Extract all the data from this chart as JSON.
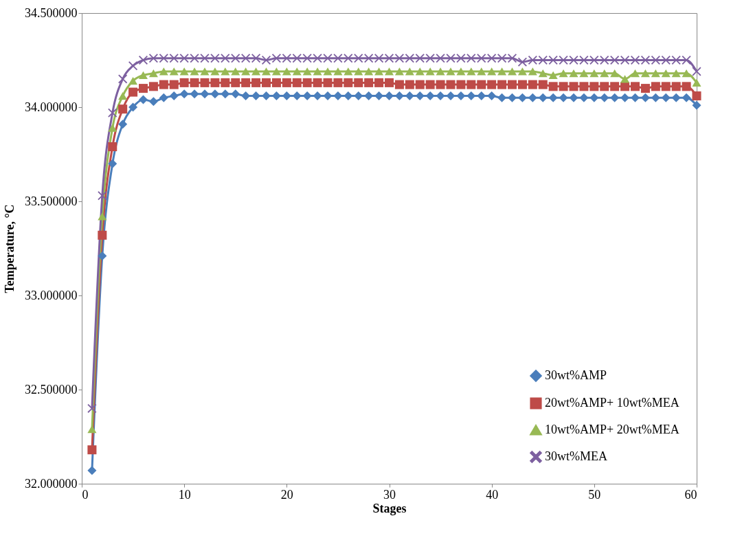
{
  "chart_data": {
    "type": "line",
    "xlabel": "Stages",
    "ylabel": "Temperature, °C",
    "x": [
      1,
      2,
      3,
      4,
      5,
      6,
      7,
      8,
      9,
      10,
      11,
      12,
      13,
      14,
      15,
      16,
      17,
      18,
      19,
      20,
      21,
      22,
      23,
      24,
      25,
      26,
      27,
      28,
      29,
      30,
      31,
      32,
      33,
      34,
      35,
      36,
      37,
      38,
      39,
      40,
      41,
      42,
      43,
      44,
      45,
      46,
      47,
      48,
      49,
      50,
      51,
      52,
      53,
      54,
      55,
      56,
      57,
      58,
      59,
      60
    ],
    "series": [
      {
        "name": "30wt%AMP",
        "color": "#4a7ebb",
        "marker": "diamond",
        "values": [
          32.07,
          33.21,
          33.7,
          33.91,
          34.0,
          34.04,
          34.03,
          34.05,
          34.06,
          34.07,
          34.07,
          34.07,
          34.07,
          34.07,
          34.07,
          34.06,
          34.06,
          34.06,
          34.06,
          34.06,
          34.06,
          34.06,
          34.06,
          34.06,
          34.06,
          34.06,
          34.06,
          34.06,
          34.06,
          34.06,
          34.06,
          34.06,
          34.06,
          34.06,
          34.06,
          34.06,
          34.06,
          34.06,
          34.06,
          34.06,
          34.05,
          34.05,
          34.05,
          34.05,
          34.05,
          34.05,
          34.05,
          34.05,
          34.05,
          34.05,
          34.05,
          34.05,
          34.05,
          34.05,
          34.05,
          34.05,
          34.05,
          34.05,
          34.05,
          34.01
        ]
      },
      {
        "name": "20wt%AMP+ 10wt%MEA",
        "color": "#be4b48",
        "marker": "square",
        "values": [
          32.18,
          33.32,
          33.79,
          33.99,
          34.08,
          34.1,
          34.11,
          34.12,
          34.12,
          34.13,
          34.13,
          34.13,
          34.13,
          34.13,
          34.13,
          34.13,
          34.13,
          34.13,
          34.13,
          34.13,
          34.13,
          34.13,
          34.13,
          34.13,
          34.13,
          34.13,
          34.13,
          34.13,
          34.13,
          34.13,
          34.12,
          34.12,
          34.12,
          34.12,
          34.12,
          34.12,
          34.12,
          34.12,
          34.12,
          34.12,
          34.12,
          34.12,
          34.12,
          34.12,
          34.12,
          34.11,
          34.11,
          34.11,
          34.11,
          34.11,
          34.11,
          34.11,
          34.11,
          34.11,
          34.1,
          34.11,
          34.11,
          34.11,
          34.11,
          34.06
        ]
      },
      {
        "name": "10wt%AMP+ 20wt%MEA",
        "color": "#98b954",
        "marker": "triangle",
        "values": [
          32.29,
          33.42,
          33.89,
          34.06,
          34.14,
          34.17,
          34.18,
          34.19,
          34.19,
          34.19,
          34.19,
          34.19,
          34.19,
          34.19,
          34.19,
          34.19,
          34.19,
          34.19,
          34.19,
          34.19,
          34.19,
          34.19,
          34.19,
          34.19,
          34.19,
          34.19,
          34.19,
          34.19,
          34.19,
          34.19,
          34.19,
          34.19,
          34.19,
          34.19,
          34.19,
          34.19,
          34.19,
          34.19,
          34.19,
          34.19,
          34.19,
          34.19,
          34.19,
          34.19,
          34.18,
          34.17,
          34.18,
          34.18,
          34.18,
          34.18,
          34.18,
          34.18,
          34.15,
          34.18,
          34.18,
          34.18,
          34.18,
          34.18,
          34.18,
          34.13
        ]
      },
      {
        "name": "30wt%MEA",
        "color": "#7d60a0",
        "marker": "cross",
        "values": [
          32.4,
          33.53,
          33.97,
          34.15,
          34.22,
          34.25,
          34.26,
          34.26,
          34.26,
          34.26,
          34.26,
          34.26,
          34.26,
          34.26,
          34.26,
          34.26,
          34.26,
          34.25,
          34.26,
          34.26,
          34.26,
          34.26,
          34.26,
          34.26,
          34.26,
          34.26,
          34.26,
          34.26,
          34.26,
          34.26,
          34.26,
          34.26,
          34.26,
          34.26,
          34.26,
          34.26,
          34.26,
          34.26,
          34.26,
          34.26,
          34.26,
          34.26,
          34.24,
          34.25,
          34.25,
          34.25,
          34.25,
          34.25,
          34.25,
          34.25,
          34.25,
          34.25,
          34.25,
          34.25,
          34.25,
          34.25,
          34.25,
          34.25,
          34.25,
          34.19
        ]
      }
    ],
    "xlim": [
      0,
      60
    ],
    "xticks": [
      0,
      10,
      20,
      30,
      40,
      50,
      60
    ],
    "ylim": [
      32,
      34.5
    ],
    "yticks": [
      {
        "value": 32,
        "label": "32.000000"
      },
      {
        "value": 32.5,
        "label": "32.500000"
      },
      {
        "value": 33,
        "label": "33.000000"
      },
      {
        "value": 33.5,
        "label": "33.500000"
      },
      {
        "value": 34,
        "label": "34.000000"
      },
      {
        "value": 34.5,
        "label": "34.500000"
      }
    ],
    "grid": false,
    "legend": "bottom right",
    "line_style": "solid"
  }
}
